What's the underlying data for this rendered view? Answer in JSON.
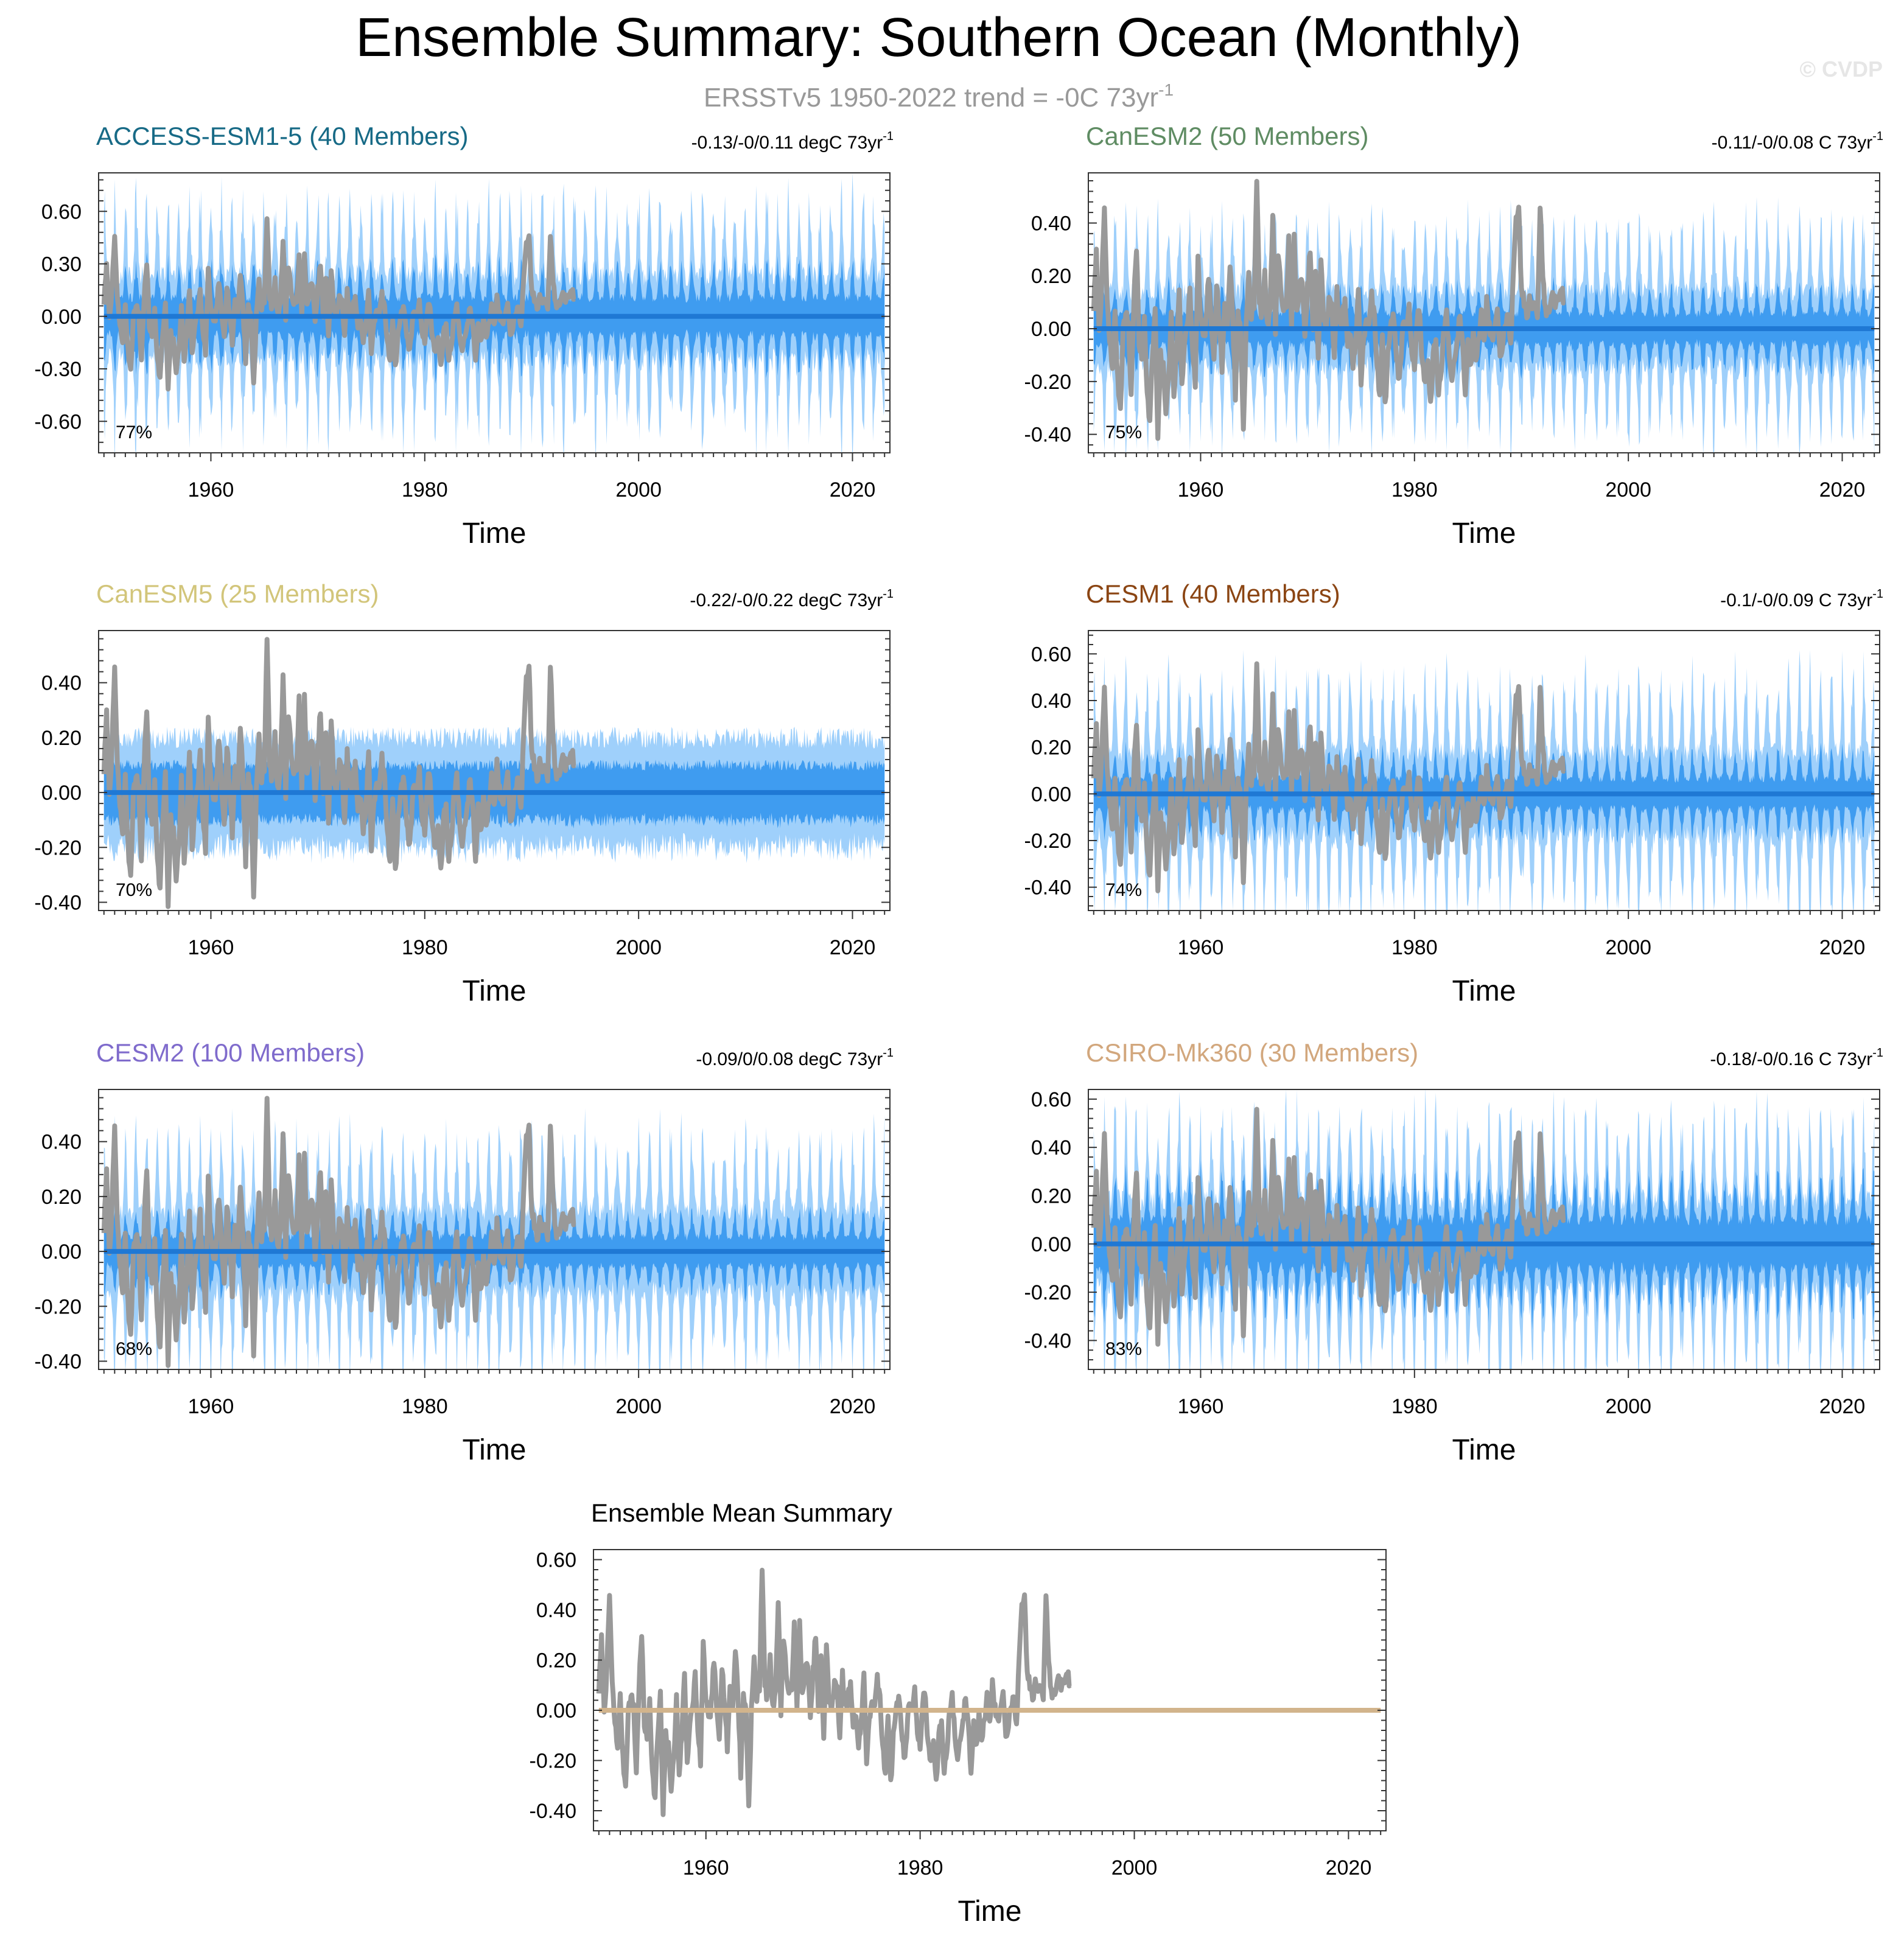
{
  "page": {
    "title": "Ensemble Summary: Southern Ocean (Monthly)",
    "subtitle_main": "ERSSTv5 1950-2022 trend = -0C 73yr",
    "subtitle_sup": "-1",
    "watermark": "© CVDP"
  },
  "colors": {
    "obs": "#999999",
    "band_light": "#9fd0fb",
    "band_dark": "#3f9cf0",
    "mean_line": "#1f78d4",
    "ensemble_mean_line": "#d2b48c",
    "axis": "#333333",
    "title": "#000000",
    "subtitle": "#999999",
    "watermark": "#e8e8e8"
  },
  "chart_data": [
    {
      "type": "line",
      "title": "ACCESS-ESM1-5 (40 Members)",
      "title_color": "#176a86",
      "trend_label": "-0.13/-0/0.11 degC 73yr",
      "trend_sup": "-1",
      "pct_label": "77%",
      "xlabel": "Time",
      "xlim": [
        1949.5,
        2023.5
      ],
      "ylim": [
        -0.78,
        0.82
      ],
      "yticks": [
        -0.6,
        -0.3,
        0.0,
        0.3,
        0.6
      ],
      "yticklabels": [
        "-0.60",
        "-0.30",
        "0.00",
        "0.30",
        "0.60"
      ],
      "xticks": [
        1960,
        1980,
        2000,
        2020
      ],
      "xticklabels": [
        "1960",
        "1980",
        "2000",
        "2020"
      ],
      "spread_outer": 0.66,
      "spread_inner": 0.3,
      "seasonal_cycle": true,
      "show_members": true
    },
    {
      "type": "line",
      "title": "CanESM2 (50 Members)",
      "title_color": "#5f8c63",
      "trend_label": "-0.11/-0/0.08 C 73yr",
      "trend_sup": "-1",
      "pct_label": "75%",
      "xlabel": "Time",
      "xlim": [
        1949.5,
        2023.5
      ],
      "ylim": [
        -0.47,
        0.59
      ],
      "yticks": [
        -0.4,
        -0.2,
        0.0,
        0.2,
        0.4
      ],
      "yticklabels": [
        "-0.40",
        "-0.20",
        "0.00",
        "0.20",
        "0.40"
      ],
      "xticks": [
        1960,
        1980,
        2000,
        2020
      ],
      "xticklabels": [
        "1960",
        "1980",
        "2000",
        "2020"
      ],
      "spread_outer": 0.4,
      "spread_inner": 0.16,
      "seasonal_cycle": true,
      "show_members": true
    },
    {
      "type": "line",
      "title": "CanESM5 (25 Members)",
      "title_color": "#d2c57a",
      "trend_label": "-0.22/-0/0.22 degC 73yr",
      "trend_sup": "-1",
      "pct_label": "70%",
      "xlabel": "Time",
      "xlim": [
        1949.5,
        2023.5
      ],
      "ylim": [
        -0.43,
        0.59
      ],
      "yticks": [
        -0.4,
        -0.2,
        0.0,
        0.2,
        0.4
      ],
      "yticklabels": [
        "-0.40",
        "-0.20",
        "0.00",
        "0.20",
        "0.40"
      ],
      "xticks": [
        1960,
        1980,
        2000,
        2020
      ],
      "xticklabels": [
        "1960",
        "1980",
        "2000",
        "2020"
      ],
      "spread_outer": 0.2,
      "spread_inner": 0.1,
      "seasonal_cycle": false,
      "show_members": true
    },
    {
      "type": "line",
      "title": "CESM1 (40 Members)",
      "title_color": "#8b4513",
      "trend_label": "-0.1/-0/0.09 C 73yr",
      "trend_sup": "-1",
      "pct_label": "74%",
      "xlabel": "Time",
      "xlim": [
        1949.5,
        2023.5
      ],
      "ylim": [
        -0.5,
        0.7
      ],
      "yticks": [
        -0.4,
        -0.2,
        0.0,
        0.2,
        0.4,
        0.6
      ],
      "yticklabels": [
        "-0.40",
        "-0.20",
        "0.00",
        "0.20",
        "0.40",
        "0.60"
      ],
      "xticks": [
        1960,
        1980,
        2000,
        2020
      ],
      "xticklabels": [
        "1960",
        "1980",
        "2000",
        "2020"
      ],
      "spread_outer": 0.5,
      "spread_inner": 0.18,
      "seasonal_cycle": true,
      "show_members": true
    },
    {
      "type": "line",
      "title": "CESM2 (100 Members)",
      "title_color": "#7f6bcc",
      "trend_label": "-0.09/0/0.08 degC 73yr",
      "trend_sup": "-1",
      "pct_label": "68%",
      "xlabel": "Time",
      "xlim": [
        1949.5,
        2023.5
      ],
      "ylim": [
        -0.43,
        0.59
      ],
      "yticks": [
        -0.4,
        -0.2,
        0.0,
        0.2,
        0.4
      ],
      "yticklabels": [
        "-0.40",
        "-0.20",
        "0.00",
        "0.20",
        "0.40"
      ],
      "xticks": [
        1960,
        1980,
        2000,
        2020
      ],
      "xticklabels": [
        "1960",
        "1980",
        "2000",
        "2020"
      ],
      "spread_outer": 0.42,
      "spread_inner": 0.15,
      "seasonal_cycle": true,
      "show_members": true
    },
    {
      "type": "line",
      "title": "CSIRO-Mk360 (30 Members)",
      "title_color": "#d2a77d",
      "trend_label": "-0.18/-0/0.16 C 73yr",
      "trend_sup": "-1",
      "pct_label": "83%",
      "xlabel": "Time",
      "xlim": [
        1949.5,
        2023.5
      ],
      "ylim": [
        -0.52,
        0.64
      ],
      "yticks": [
        -0.4,
        -0.2,
        0.0,
        0.2,
        0.4,
        0.6
      ],
      "yticklabels": [
        "-0.40",
        "-0.20",
        "0.00",
        "0.20",
        "0.40",
        "0.60"
      ],
      "xticks": [
        1960,
        1980,
        2000,
        2020
      ],
      "xticklabels": [
        "1960",
        "1980",
        "2000",
        "2020"
      ],
      "spread_outer": 0.52,
      "spread_inner": 0.28,
      "seasonal_cycle": true,
      "show_members": true
    },
    {
      "type": "line",
      "title": "Ensemble Mean Summary",
      "title_color": "#000000",
      "trend_label": "",
      "trend_sup": "",
      "pct_label": "",
      "xlabel": "Time",
      "xlim": [
        1949.5,
        2023.5
      ],
      "ylim": [
        -0.48,
        0.64
      ],
      "yticks": [
        -0.4,
        -0.2,
        0.0,
        0.2,
        0.4,
        0.6
      ],
      "yticklabels": [
        "-0.40",
        "-0.20",
        "0.00",
        "0.20",
        "0.40",
        "0.60"
      ],
      "xticks": [
        1960,
        1980,
        2000,
        2020
      ],
      "xticklabels": [
        "1960",
        "1980",
        "2000",
        "2020"
      ],
      "spread_outer": 0,
      "spread_inner": 0,
      "seasonal_cycle": false,
      "show_members": false
    }
  ],
  "obs_series": {
    "name": "ERSSTv5",
    "start_year": 1950,
    "step_years": 0.25,
    "values": [
      0.08,
      0.28,
      0.0,
      0.15,
      0.46,
      0.1,
      -0.05,
      -0.15,
      0.05,
      -0.2,
      -0.3,
      0.0,
      0.05,
      0.02,
      -0.25,
      0.1,
      0.3,
      -0.05,
      -0.12,
      0.05,
      -0.25,
      -0.35,
      -0.1,
      0.06,
      -0.43,
      -0.1,
      -0.15,
      -0.3,
      -0.2,
      0.05,
      -0.25,
      -0.1,
      0.15,
      -0.2,
      -0.05,
      0.0,
      0.15,
      -0.1,
      -0.2,
      0.25,
      0.05,
      -0.05,
      0.02,
      0.2,
      0.0,
      -0.1,
      0.18,
      0.02,
      -0.15,
      0.1,
      0.0,
      0.25,
      0.05,
      -0.25,
      0.05,
      0.0,
      -0.39,
      0.0,
      0.2,
      0.05,
      0.1,
      0.58,
      0.1,
      0.05,
      0.2,
      0.0,
      0.1,
      0.42,
      0.0,
      0.3,
      0.15,
      0.05,
      0.1,
      0.33,
      0.0,
      0.35,
      0.05,
      0.15,
      0.2,
      -0.05,
      0.15,
      0.3,
      0.0,
      0.2,
      -0.1,
      0.25,
      0.05,
      0.0,
      0.1,
      0.1,
      -0.1,
      0.15,
      0.0,
      0.05,
      0.1,
      -0.05,
      0.0,
      -0.15,
      -0.05,
      0.15,
      -0.2,
      -0.05,
      0.05,
      0.0,
      0.12,
      0.05,
      -0.15,
      -0.25,
      0.0,
      -0.3,
      -0.1,
      0.0,
      0.05,
      -0.05,
      -0.2,
      -0.1,
      0.05,
      0.0,
      0.1,
      -0.1,
      -0.15,
      0.05,
      0.05,
      -0.15,
      -0.2,
      -0.12,
      -0.3,
      -0.1,
      -0.05,
      -0.25,
      -0.15,
      0.0,
      0.05,
      -0.1,
      -0.2,
      -0.1,
      -0.05,
      0.05,
      -0.05,
      -0.25,
      -0.05,
      -0.15,
      0.0,
      -0.1,
      -0.05,
      0.05,
      -0.05,
      0.1,
      0.0,
      -0.05,
      0.0,
      0.05,
      -0.1,
      -0.05,
      0.0,
      0.05,
      -0.05,
      0.2,
      0.4,
      0.46,
      0.15,
      0.1,
      0.05,
      0.1,
      0.08,
      0.1,
      0.06,
      0.47,
      0.2,
      0.08,
      0.05,
      0.1,
      0.12,
      0.09,
      0.12,
      0.15,
      0.1
    ]
  }
}
